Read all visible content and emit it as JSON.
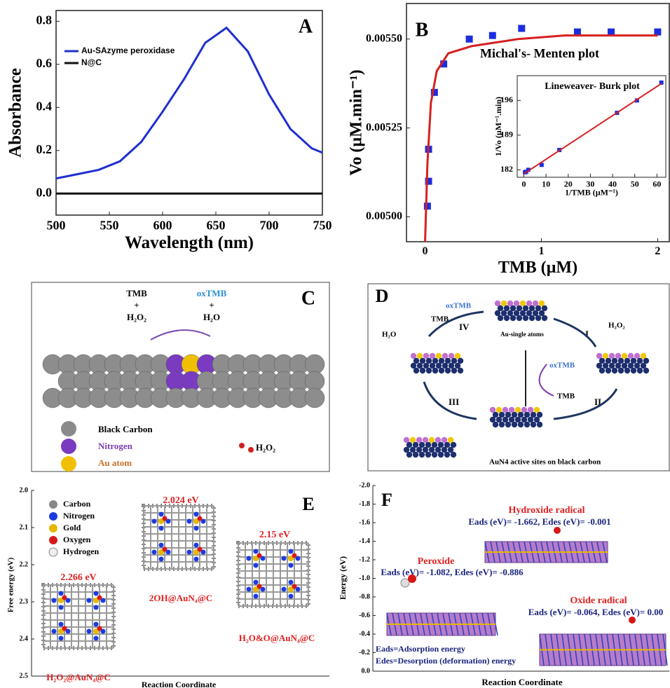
{
  "chart_data": [
    {
      "type": "line",
      "panel_label": "A",
      "xlabel": "Wavelength (nm)",
      "ylabel": "Absorbance",
      "xlim": [
        500,
        750
      ],
      "ylim": [
        -0.1,
        0.85
      ],
      "xticks": [
        500,
        550,
        600,
        650,
        700,
        750
      ],
      "yticks": [
        {
          "value": 0,
          "label": "0.0"
        },
        0.2,
        0.4,
        0.6,
        0.8
      ],
      "x": [
        500,
        520,
        540,
        560,
        580,
        600,
        620,
        640,
        660,
        680,
        700,
        720,
        740,
        750
      ],
      "legend": "upper left",
      "series": [
        {
          "name": "Au-SAzyme peroxidase",
          "color": "#1f2fd0",
          "values": [
            0.07,
            0.09,
            0.11,
            0.15,
            0.24,
            0.38,
            0.53,
            0.7,
            0.77,
            0.66,
            0.46,
            0.3,
            0.21,
            0.19
          ]
        },
        {
          "name": "N@C",
          "color": "#111111",
          "values": [
            0.0,
            0.0,
            0.0,
            0.0,
            0.0,
            0.0,
            0.0,
            0.0,
            0.0,
            0.0,
            0.0,
            0.0,
            0.0,
            0.0
          ]
        }
      ]
    },
    {
      "type": "scatter",
      "panel_label": "B",
      "title": "Michal's- Menten plot",
      "xlabel": "TMB (µM)",
      "ylabel": "Vo (µM.min⁻¹)",
      "xlim": [
        -0.16,
        2.1
      ],
      "ylim": [
        0.00493,
        0.0056
      ],
      "xticks": [
        0,
        1,
        2
      ],
      "yticks": [
        {
          "value": 0.005,
          "label": "0.00500"
        },
        {
          "value": 0.00525,
          "label": "0.00525"
        },
        {
          "value": 0.0055,
          "label": "0.00550"
        }
      ],
      "series": [
        {
          "type": "scatter",
          "color": "#1a2ee0",
          "x": [
            0.02,
            0.03,
            0.03,
            0.08,
            0.16,
            0.38,
            0.58,
            0.83,
            1.31,
            1.6,
            2.0
          ],
          "values": [
            0.00503,
            0.0051,
            0.00519,
            0.00535,
            0.00543,
            0.0055,
            0.00551,
            0.00553,
            0.00552,
            0.00552,
            0.00552
          ]
        },
        {
          "type": "line",
          "color": "#d62020",
          "x": [
            0.0,
            0.02,
            0.05,
            0.1,
            0.2,
            0.4,
            0.8,
            1.2,
            1.6,
            2.0
          ],
          "values": [
            0.00493,
            0.00515,
            0.00532,
            0.00541,
            0.00546,
            0.00548,
            0.0055,
            0.00551,
            0.00551,
            0.00551
          ]
        }
      ]
    },
    {
      "type": "scatter",
      "title": "Lineweaver- Burk plot",
      "xlabel": "1/TMB (µM⁻¹)",
      "ylabel": "1/Vo (µM⁻¹.min)",
      "xlim": [
        -3,
        64
      ],
      "ylim": [
        180.5,
        201
      ],
      "xticks": [
        0,
        10,
        20,
        30,
        40,
        50,
        60
      ],
      "yticks": [
        182,
        189,
        196
      ],
      "series": [
        {
          "type": "scatter",
          "color": "#1a2ee0",
          "x": [
            0.5,
            1,
            2,
            8,
            16,
            42,
            51,
            62
          ],
          "values": [
            181.5,
            181.6,
            182,
            183,
            186,
            193.5,
            196,
            199.6
          ]
        },
        {
          "type": "line",
          "color": "#d62020",
          "x": [
            0,
            62
          ],
          "values": [
            181.2,
            199.4
          ]
        }
      ]
    }
  ],
  "panels": {
    "C": {
      "label": "C",
      "reactant_1": "TMB",
      "plus_1": "+",
      "reactant_2": "H₂O₂",
      "product_1": "oxTMB",
      "plus_2": "+",
      "product_2": "H₂O",
      "legend": [
        "Black Carbon",
        "Nitrogen",
        "Au atom",
        "H₂O₂"
      ]
    },
    "D": {
      "label": "D",
      "oxtmb_1": "oxTMB",
      "tmb_1": "TMB",
      "step_4": "IV",
      "top_caption": "Au-single atoms",
      "step_1": "I",
      "h2o2": "H₂O₂",
      "h2o": "H₂O",
      "oxtmb_2": "oxTMB",
      "tmb_2": "TMB",
      "step_3": "III",
      "step_2": "II",
      "caption": "AuN4 active sites on black carbon"
    },
    "E": {
      "label": "E",
      "ylabel": "Free energy (eV)",
      "xlabel": "Reaction Coordinate",
      "yticks": [
        "2.0",
        "2.1",
        "2.2",
        "2.3",
        "2.4",
        "2.5"
      ],
      "legend": [
        "Carbon",
        "Nitrogen",
        "Gold",
        "Oxygen",
        "Hydrogen"
      ],
      "states": [
        {
          "energy": "2.266 eV",
          "name": "H₂O₂@AuN₄@C"
        },
        {
          "energy": "2.024 eV",
          "name": "2OH@AuN₄@C"
        },
        {
          "energy": "2.15 eV",
          "name": "H₂O&O@AuN₄@C"
        }
      ]
    },
    "F": {
      "label": "F",
      "ylabel": "Energy (eV)",
      "xlabel": "Reaction Coordinate",
      "yticks": [
        "-2.0",
        "-1.8",
        "-1.6",
        "-1.4",
        "-1.2",
        "-1.0",
        "-0.8",
        "-0.6",
        "-0.4",
        "-0.2",
        "0.0"
      ],
      "hydroxide": "Hydroxide radical",
      "hydroxide_energy": "Eads (eV)= -1.662, Edes (eV)= -0.001",
      "peroxide": "Peroxide",
      "peroxide_energy": "Eads (eV)= -1.082, Edes (eV)= -0.886",
      "oxide": "Oxide radical",
      "oxide_energy": "Eads (eV)= -0.064, Edes (eV)= 0.00",
      "note_1": "Eads=Adsorption energy",
      "note_2": "Edes=Desorption (deformation) energy"
    }
  }
}
